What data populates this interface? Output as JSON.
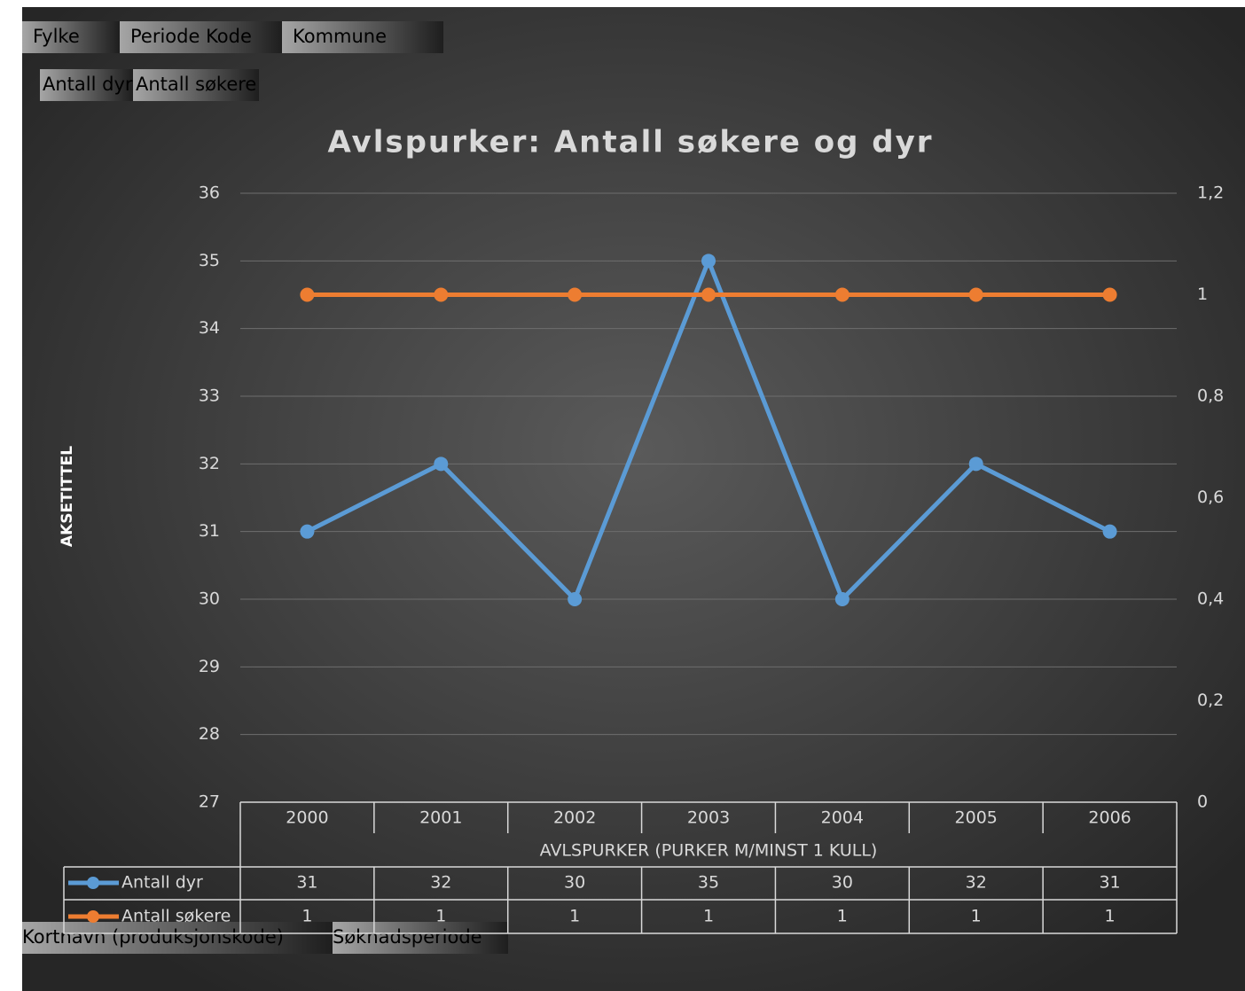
{
  "filter_buttons": [
    "Fylke",
    "Periode Kode",
    "Kommune"
  ],
  "value_buttons": [
    "Antall dyr",
    "Antall søkere"
  ],
  "row_buttons": [
    "Kortnavn (produksjonskode)",
    "Søknadsperiode"
  ],
  "chart_data": {
    "type": "line",
    "title": "Avlspurker: Antall søkere og dyr",
    "y_label": "AKSETITTEL",
    "x_label": "AVLSPURKER (PURKER M/MINST 1 KULL)",
    "categories": [
      "2000",
      "2001",
      "2002",
      "2003",
      "2004",
      "2005",
      "2006"
    ],
    "series": [
      {
        "name": "Antall dyr",
        "color": "#5b9bd5",
        "values": [
          31,
          32,
          30,
          35,
          30,
          32,
          31
        ]
      },
      {
        "name": "Antall søkere",
        "color": "#ed7d31",
        "axis": "y2",
        "values": [
          1,
          1,
          1,
          1,
          1,
          1,
          1
        ]
      }
    ],
    "ylim": [
      27,
      36
    ],
    "yticks": [
      27,
      28,
      29,
      30,
      31,
      32,
      33,
      34,
      35,
      36
    ],
    "y2lim": [
      0,
      1.2
    ],
    "y2ticks": [
      0,
      {
        "value": 0.2,
        "label": "0,2"
      },
      {
        "value": 0.4,
        "label": "0,4"
      },
      {
        "value": 0.6,
        "label": "0,6"
      },
      {
        "value": 0.8,
        "label": "0,8"
      },
      1,
      {
        "value": 1.2,
        "label": "1,2"
      }
    ],
    "grid": true
  }
}
